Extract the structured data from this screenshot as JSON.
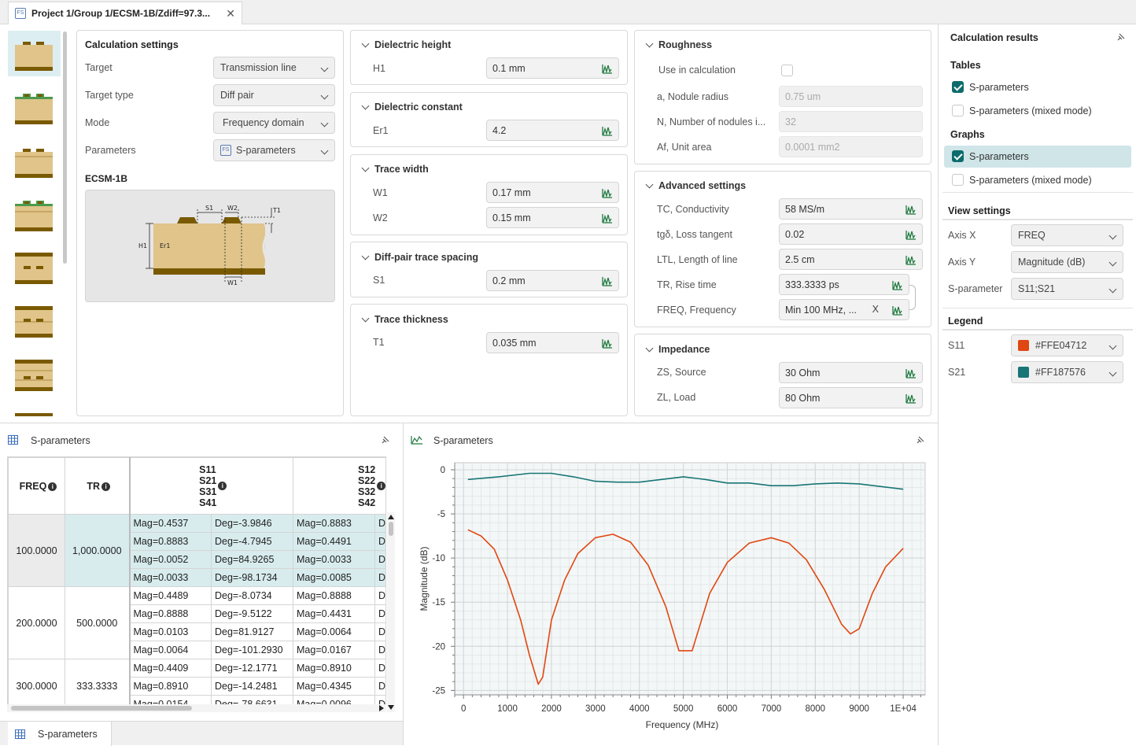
{
  "tab": {
    "title": "Project 1/Group 1/ECSM-1B/Zdiff=97.3...",
    "icon": "fs-icon"
  },
  "calc_settings": {
    "title": "Calculation settings",
    "rows": [
      {
        "label": "Target",
        "value": "Transmission line"
      },
      {
        "label": "Target type",
        "value": "Diff pair"
      },
      {
        "label": "Mode",
        "value": "Frequency domain"
      },
      {
        "label": "Parameters",
        "value": "S-parameters"
      }
    ],
    "model_name": "ECSM-1B",
    "diagram_labels": {
      "s1": "S1",
      "w2": "W2",
      "t1": "T1",
      "h1": "H1",
      "er1": "Er1",
      "w1": "W1"
    }
  },
  "dielectric": {
    "height": {
      "title": "Dielectric height",
      "label": "H1",
      "value": "0.1 mm"
    },
    "constant": {
      "title": "Dielectric constant",
      "label": "Er1",
      "value": "4.2"
    },
    "trace_width": {
      "title": "Trace width",
      "w1_label": "W1",
      "w1": "0.17 mm",
      "w2_label": "W2",
      "w2": "0.15 mm"
    },
    "spacing": {
      "title": "Diff-pair trace spacing",
      "label": "S1",
      "value": "0.2 mm"
    },
    "thickness": {
      "title": "Trace thickness",
      "label": "T1",
      "value": "0.035 mm"
    }
  },
  "roughness": {
    "title": "Roughness",
    "use_label": "Use in calculation",
    "rows": [
      {
        "label": "a, Nodule radius",
        "value": "0.75 um"
      },
      {
        "label": "N, Number of nodules i...",
        "value": "32"
      },
      {
        "label": "Af, Unit area",
        "value": "0.0001 mm2"
      }
    ]
  },
  "advanced": {
    "title": "Advanced settings",
    "rows": [
      {
        "label": "TC, Conductivity",
        "value": "58 MS/m"
      },
      {
        "label": "tgδ, Loss tangent",
        "value": "0.02"
      },
      {
        "label": "LTL, Length of line",
        "value": "2.5 cm"
      },
      {
        "label": "TR, Rise time",
        "value": "333.3333 ps"
      },
      {
        "label": "FREQ, Frequency",
        "value": "Min 100 MHz, ...",
        "clear": "X"
      }
    ]
  },
  "impedance": {
    "title": "Impedance",
    "rows": [
      {
        "label": "ZS, Source",
        "value": "30 Ohm"
      },
      {
        "label": "ZL, Load",
        "value": "80 Ohm"
      }
    ]
  },
  "results": {
    "title": "Calculation results",
    "tables_title": "Tables",
    "tables": [
      {
        "label": "S-parameters",
        "checked": true
      },
      {
        "label": "S-parameters (mixed mode)",
        "checked": false
      }
    ],
    "graphs_title": "Graphs",
    "graphs": [
      {
        "label": "S-parameters",
        "checked": true
      },
      {
        "label": "S-parameters (mixed mode)",
        "checked": false
      }
    ],
    "view_title": "View settings",
    "view": [
      {
        "label": "Axis X",
        "value": "FREQ"
      },
      {
        "label": "Axis Y",
        "value": "Magnitude (dB)"
      },
      {
        "label": "S-parameter",
        "value": "S11;S21"
      }
    ],
    "legend_title": "Legend",
    "legend": [
      {
        "label": "S11",
        "value": "#FFE04712",
        "color": "#e04712"
      },
      {
        "label": "S21",
        "value": "#FF187576",
        "color": "#187576"
      }
    ]
  },
  "table_panel": {
    "title": "S-parameters",
    "bottom_tab": "S-parameters",
    "headers": {
      "freq": "FREQ",
      "tr": "TR",
      "col1": [
        "S11",
        "S21",
        "S31",
        "S41"
      ],
      "col2": [
        "S12",
        "S22",
        "S32",
        "S42"
      ]
    },
    "groups": [
      {
        "freq": "100.0000",
        "tr": "1,000.0000",
        "rows": [
          [
            "Mag=0.4537",
            "Deg=-3.9846",
            "Mag=0.8883",
            "De"
          ],
          [
            "Mag=0.8883",
            "Deg=-4.7945",
            "Mag=0.4491",
            "De"
          ],
          [
            "Mag=0.0052",
            "Deg=84.9265",
            "Mag=0.0033",
            "De"
          ],
          [
            "Mag=0.0033",
            "Deg=-98.1734",
            "Mag=0.0085",
            "De"
          ]
        ]
      },
      {
        "freq": "200.0000",
        "tr": "500.0000",
        "rows": [
          [
            "Mag=0.4489",
            "Deg=-8.0734",
            "Mag=0.8888",
            "De"
          ],
          [
            "Mag=0.8888",
            "Deg=-9.5122",
            "Mag=0.4431",
            "De"
          ],
          [
            "Mag=0.0103",
            "Deg=81.9127",
            "Mag=0.0064",
            "De"
          ],
          [
            "Mag=0.0064",
            "Deg=-101.2930",
            "Mag=0.0167",
            "De"
          ]
        ]
      },
      {
        "freq": "300.0000",
        "tr": "333.3333",
        "rows": [
          [
            "Mag=0.4409",
            "Deg=-12.1771",
            "Mag=0.8910",
            "De"
          ],
          [
            "Mag=0.8910",
            "Deg=-14.2481",
            "Mag=0.4345",
            "De"
          ],
          [
            "Mag=0.0154",
            "Deg=-78.6631",
            "Mag=0.0096",
            "De"
          ]
        ]
      }
    ]
  },
  "chart_panel": {
    "title": "S-parameters"
  },
  "chart_data": {
    "type": "line",
    "xlabel": "Frequency (MHz)",
    "ylabel": "Magnitude (dB)",
    "xlim": [
      -200,
      10500
    ],
    "ylim": [
      -25.5,
      0.8
    ],
    "xticks": [
      0,
      1000,
      2000,
      3000,
      4000,
      5000,
      6000,
      7000,
      8000,
      9000,
      10000
    ],
    "xtick_labels": [
      "0",
      "1000",
      "2000",
      "3000",
      "4000",
      "5000",
      "6000",
      "7000",
      "8000",
      "9000",
      "1E+04"
    ],
    "yticks": [
      0,
      -5,
      -10,
      -15,
      -20,
      -25
    ],
    "grid": true,
    "series": [
      {
        "name": "S11",
        "color": "#e04712",
        "x": [
          100,
          400,
          700,
          1000,
          1300,
          1500,
          1700,
          1800,
          2000,
          2300,
          2600,
          3000,
          3400,
          3800,
          4200,
          4600,
          4900,
          5200,
          5600,
          6000,
          6500,
          7000,
          7400,
          7800,
          8200,
          8600,
          8800,
          9000,
          9300,
          9600,
          10000
        ],
        "y": [
          -6.8,
          -7.5,
          -9.0,
          -12.5,
          -17.0,
          -21.0,
          -24.3,
          -23.5,
          -17.0,
          -12.5,
          -9.5,
          -7.7,
          -7.3,
          -8.2,
          -10.8,
          -15.5,
          -20.5,
          -20.5,
          -14.0,
          -10.5,
          -8.3,
          -7.7,
          -8.3,
          -10.2,
          -13.5,
          -17.5,
          -18.6,
          -18.0,
          -14.0,
          -11.0,
          -8.9
        ]
      },
      {
        "name": "S21",
        "color": "#187576",
        "x": [
          100,
          800,
          1500,
          2000,
          2500,
          3000,
          3500,
          4000,
          4500,
          5000,
          5500,
          6000,
          6500,
          7000,
          7500,
          8000,
          8500,
          9000,
          9500,
          10000
        ],
        "y": [
          -1.1,
          -0.8,
          -0.4,
          -0.4,
          -0.8,
          -1.3,
          -1.4,
          -1.4,
          -1.1,
          -0.8,
          -1.1,
          -1.5,
          -1.5,
          -1.8,
          -1.8,
          -1.6,
          -1.5,
          -1.6,
          -1.9,
          -2.2
        ]
      }
    ]
  }
}
